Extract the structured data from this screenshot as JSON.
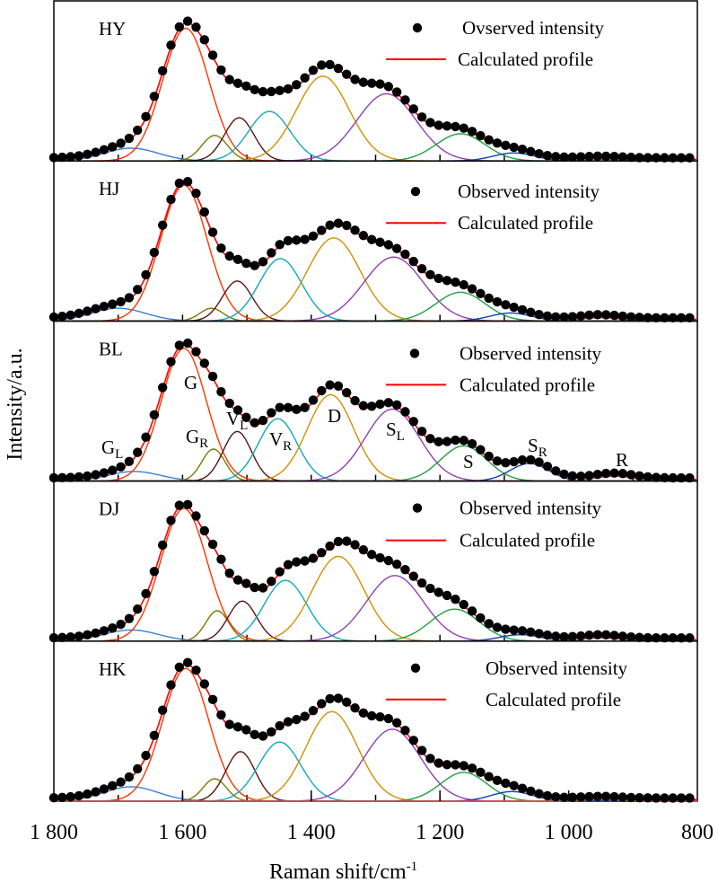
{
  "chart_data": {
    "type": "line",
    "xlabel": "Raman shift/cm",
    "xlabel_sup": "-1",
    "ylabel": "Intensity/a.u.",
    "xlim": [
      1800,
      800
    ],
    "x_reversed": true,
    "x_ticks": [
      "1 800",
      "1 600",
      "1 400",
      "1 200",
      "1 000",
      "800"
    ],
    "x_tick_values": [
      1800,
      1600,
      1400,
      1200,
      1000,
      800
    ],
    "grid": false,
    "legend_placement": "top-right",
    "observed_step_cm": 13,
    "component_colors": {
      "GL": "#3a7fd0",
      "G": "#ff3300",
      "GR": "#7a7a00",
      "VL": "#5a1414",
      "VR": "#12a8c0",
      "D": "#d09000",
      "SL": "#9040b0",
      "S": "#20a040",
      "SR": "#1040b0",
      "R": "#e05050"
    },
    "calculated_color": "#ff0000",
    "observed_color": "#000000",
    "component_note_units": "center in cm-1, amplitude in a.u., sigma in cm-1",
    "panels": [
      {
        "sample": "HY",
        "legend": {
          "observed": "Ovserved intensity",
          "calculated": "Calculated profile"
        },
        "components": [
          {
            "name": "GL",
            "center": 1680,
            "amp": 0.08,
            "sigma": 42
          },
          {
            "name": "G",
            "center": 1595,
            "amp": 0.83,
            "sigma": 36
          },
          {
            "name": "GR",
            "center": 1550,
            "amp": 0.16,
            "sigma": 20
          },
          {
            "name": "VL",
            "center": 1512,
            "amp": 0.27,
            "sigma": 23
          },
          {
            "name": "VR",
            "center": 1465,
            "amp": 0.31,
            "sigma": 32
          },
          {
            "name": "D",
            "center": 1382,
            "amp": 0.53,
            "sigma": 41
          },
          {
            "name": "SL",
            "center": 1283,
            "amp": 0.42,
            "sigma": 46
          },
          {
            "name": "S",
            "center": 1168,
            "amp": 0.17,
            "sigma": 38
          },
          {
            "name": "SR",
            "center": 1085,
            "amp": 0.05,
            "sigma": 32
          },
          {
            "name": "R",
            "center": 950,
            "amp": 0.01,
            "sigma": 30
          }
        ]
      },
      {
        "sample": "HJ",
        "legend": {
          "observed": "Observed intensity",
          "calculated": "Calculated profile"
        },
        "components": [
          {
            "name": "GL",
            "center": 1700,
            "amp": 0.08,
            "sigma": 42
          },
          {
            "name": "G",
            "center": 1598,
            "amp": 0.85,
            "sigma": 36
          },
          {
            "name": "GR",
            "center": 1555,
            "amp": 0.08,
            "sigma": 18
          },
          {
            "name": "VL",
            "center": 1515,
            "amp": 0.25,
            "sigma": 23
          },
          {
            "name": "VR",
            "center": 1448,
            "amp": 0.39,
            "sigma": 33
          },
          {
            "name": "D",
            "center": 1365,
            "amp": 0.52,
            "sigma": 41
          },
          {
            "name": "SL",
            "center": 1272,
            "amp": 0.4,
            "sigma": 46
          },
          {
            "name": "S",
            "center": 1168,
            "amp": 0.18,
            "sigma": 38
          },
          {
            "name": "SR",
            "center": 1090,
            "amp": 0.05,
            "sigma": 32
          },
          {
            "name": "R",
            "center": 950,
            "amp": 0.02,
            "sigma": 30
          }
        ]
      },
      {
        "sample": "BL",
        "legend": {
          "observed": "Observed intensity",
          "calculated": "Calculated profile"
        },
        "band_labels": [
          {
            "text": "G",
            "sub": "L"
          },
          {
            "text": "G",
            "sub": ""
          },
          {
            "text": "G",
            "sub": "R"
          },
          {
            "text": "V",
            "sub": "L"
          },
          {
            "text": "V",
            "sub": "R"
          },
          {
            "text": "D",
            "sub": ""
          },
          {
            "text": "S",
            "sub": "L"
          },
          {
            "text": "S",
            "sub": ""
          },
          {
            "text": "S",
            "sub": "R"
          },
          {
            "text": "R",
            "sub": ""
          }
        ],
        "components": [
          {
            "name": "GL",
            "center": 1675,
            "amp": 0.06,
            "sigma": 40
          },
          {
            "name": "G",
            "center": 1598,
            "amp": 0.83,
            "sigma": 35
          },
          {
            "name": "GR",
            "center": 1552,
            "amp": 0.2,
            "sigma": 18
          },
          {
            "name": "VL",
            "center": 1515,
            "amp": 0.31,
            "sigma": 22
          },
          {
            "name": "VR",
            "center": 1452,
            "amp": 0.39,
            "sigma": 30
          },
          {
            "name": "D",
            "center": 1370,
            "amp": 0.54,
            "sigma": 36
          },
          {
            "name": "SL",
            "center": 1274,
            "amp": 0.45,
            "sigma": 42
          },
          {
            "name": "S",
            "center": 1163,
            "amp": 0.22,
            "sigma": 36
          },
          {
            "name": "SR",
            "center": 1061,
            "amp": 0.11,
            "sigma": 30
          },
          {
            "name": "R",
            "center": 930,
            "amp": 0.03,
            "sigma": 30
          }
        ]
      },
      {
        "sample": "DJ",
        "legend": {
          "observed": "Observed intensity",
          "calculated": "Calculated profile"
        },
        "components": [
          {
            "name": "GL",
            "center": 1680,
            "amp": 0.07,
            "sigma": 42
          },
          {
            "name": "G",
            "center": 1598,
            "amp": 0.83,
            "sigma": 36
          },
          {
            "name": "GR",
            "center": 1546,
            "amp": 0.19,
            "sigma": 18
          },
          {
            "name": "VL",
            "center": 1507,
            "amp": 0.25,
            "sigma": 22
          },
          {
            "name": "VR",
            "center": 1440,
            "amp": 0.38,
            "sigma": 33
          },
          {
            "name": "D",
            "center": 1358,
            "amp": 0.53,
            "sigma": 40
          },
          {
            "name": "SL",
            "center": 1270,
            "amp": 0.41,
            "sigma": 44
          },
          {
            "name": "S",
            "center": 1177,
            "amp": 0.2,
            "sigma": 38
          },
          {
            "name": "SR",
            "center": 1075,
            "amp": 0.04,
            "sigma": 32
          },
          {
            "name": "R",
            "center": 950,
            "amp": 0.02,
            "sigma": 30
          }
        ]
      },
      {
        "sample": "HK",
        "legend": {
          "observed": "Observed intensity",
          "calculated": "Calculated profile"
        },
        "components": [
          {
            "name": "GL",
            "center": 1680,
            "amp": 0.09,
            "sigma": 42
          },
          {
            "name": "G",
            "center": 1595,
            "amp": 0.83,
            "sigma": 36
          },
          {
            "name": "GR",
            "center": 1550,
            "amp": 0.14,
            "sigma": 18
          },
          {
            "name": "VL",
            "center": 1510,
            "amp": 0.31,
            "sigma": 23
          },
          {
            "name": "VR",
            "center": 1449,
            "amp": 0.37,
            "sigma": 33
          },
          {
            "name": "D",
            "center": 1368,
            "amp": 0.56,
            "sigma": 40
          },
          {
            "name": "SL",
            "center": 1274,
            "amp": 0.45,
            "sigma": 44
          },
          {
            "name": "S",
            "center": 1163,
            "amp": 0.18,
            "sigma": 36
          },
          {
            "name": "SR",
            "center": 1088,
            "amp": 0.06,
            "sigma": 32
          },
          {
            "name": "R",
            "center": 950,
            "amp": 0.01,
            "sigma": 30
          }
        ]
      }
    ]
  }
}
